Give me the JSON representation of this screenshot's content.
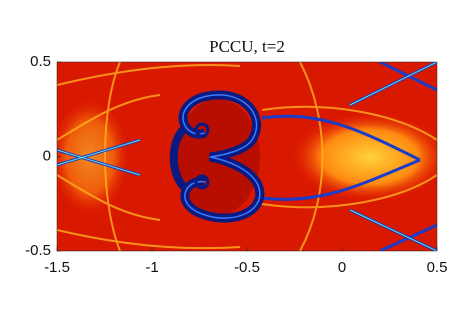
{
  "chart_data": {
    "type": "heatmap",
    "title": "PCCU, t=2",
    "xlim": [
      -1.5,
      0.5
    ],
    "xticks": [
      -1.5,
      -1,
      -0.5,
      0,
      0.5
    ],
    "ylim": [
      -0.5,
      0.5
    ],
    "yticks": [
      -0.5,
      0,
      0.5
    ]
  }
}
